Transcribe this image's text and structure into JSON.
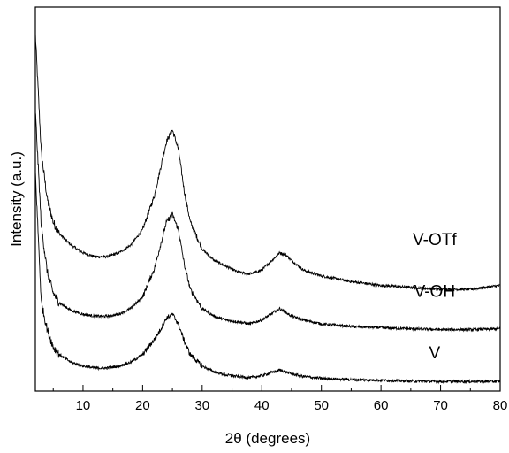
{
  "chart_data": {
    "type": "line",
    "xlabel": "2θ (degrees)",
    "ylabel": "Intensity (a.u.)",
    "xlim": [
      2,
      80
    ],
    "ylim": [
      0,
      100
    ],
    "x_ticks": [
      10,
      20,
      30,
      40,
      50,
      60,
      70,
      80
    ],
    "y_tick_labels_shown": false,
    "grid": false,
    "legend": "none",
    "line_color": "#000000",
    "series": [
      {
        "name": "V-OTf",
        "x": [
          2,
          3,
          4,
          5,
          6,
          8,
          10,
          12,
          14,
          16,
          18,
          20,
          22,
          23,
          24,
          25,
          26,
          27,
          28,
          30,
          32,
          34,
          36,
          38,
          40,
          42,
          43,
          44,
          45,
          47,
          50,
          55,
          60,
          65,
          70,
          75,
          80
        ],
        "y": [
          93,
          62,
          50,
          44,
          41,
          38,
          36,
          35,
          35,
          36,
          38,
          42,
          51,
          58,
          65,
          68,
          63,
          52,
          44,
          37,
          34,
          32.5,
          31,
          30.5,
          31.5,
          34.5,
          36,
          35.5,
          34,
          31.5,
          30,
          28.5,
          27.5,
          27,
          26.5,
          26.5,
          27.5
        ]
      },
      {
        "name": "V-OH",
        "x": [
          2,
          3,
          4,
          5,
          6,
          8,
          10,
          12,
          14,
          16,
          18,
          20,
          22,
          23,
          24,
          25,
          26,
          27,
          28,
          30,
          32,
          34,
          36,
          38,
          40,
          42,
          43,
          44,
          45,
          47,
          50,
          55,
          60,
          65,
          70,
          75,
          80
        ],
        "y": [
          73,
          43,
          31,
          25.5,
          23,
          21,
          20,
          19.5,
          19.5,
          20,
          21.5,
          24.5,
          32,
          38,
          44,
          46,
          42,
          33,
          26.5,
          21.5,
          19.5,
          18.5,
          18,
          17.5,
          18.5,
          20.5,
          21.5,
          20.5,
          19.5,
          18.5,
          17.5,
          16.8,
          16.5,
          16.2,
          16,
          16,
          16.2
        ]
      },
      {
        "name": "V",
        "x": [
          2,
          3,
          4,
          5,
          6,
          8,
          10,
          12,
          14,
          16,
          18,
          20,
          22,
          23,
          24,
          25,
          26,
          27,
          28,
          30,
          32,
          34,
          36,
          38,
          40,
          42,
          43,
          44,
          45,
          47,
          50,
          55,
          60,
          65,
          70,
          75,
          80
        ],
        "y": [
          57,
          23,
          16,
          11.5,
          9.5,
          7.5,
          6.5,
          6,
          6,
          6.5,
          7.5,
          9.5,
          13.5,
          16,
          19,
          20,
          17.5,
          13,
          9.5,
          6.5,
          5,
          4.2,
          3.8,
          3.5,
          4,
          5,
          5.5,
          5,
          4.5,
          3.8,
          3.3,
          3,
          2.8,
          2.6,
          2.5,
          2.5,
          2.5
        ]
      }
    ],
    "annotations": [
      {
        "text": "V-OTf",
        "x": 69,
        "y": 38
      },
      {
        "text": "V-OH",
        "x": 69,
        "y": 24.5
      },
      {
        "text": "V",
        "x": 69,
        "y": 8.5
      }
    ]
  }
}
